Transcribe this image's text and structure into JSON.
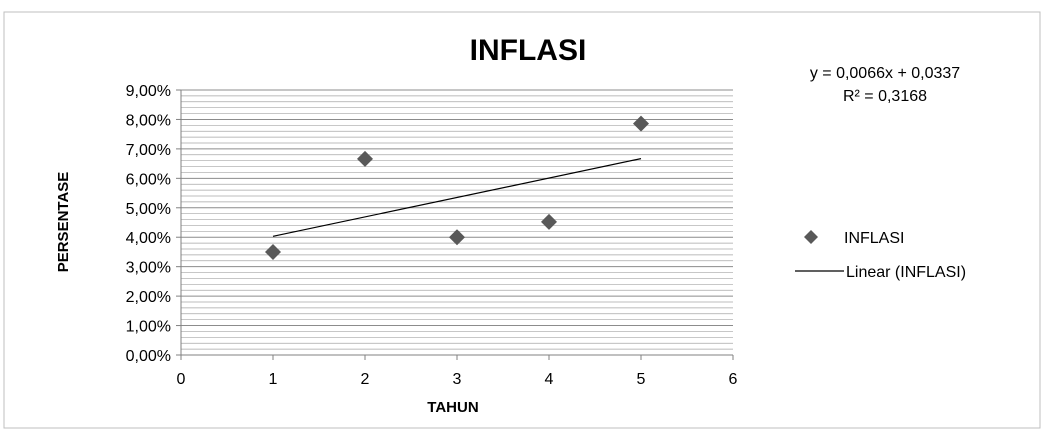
{
  "chart_data": {
    "type": "scatter",
    "title": "INFLASI",
    "xlabel": "TAHUN",
    "ylabel": "PERSENTASE",
    "xlim": [
      0,
      6
    ],
    "ylim": [
      0,
      0.09
    ],
    "x_ticks": [
      0,
      1,
      2,
      3,
      4,
      5,
      6
    ],
    "x_tick_labels": [
      "0",
      "1",
      "2",
      "3",
      "4",
      "5",
      "6"
    ],
    "y_ticks": [
      0,
      0.01,
      0.02,
      0.03,
      0.04,
      0.05,
      0.06,
      0.07,
      0.08,
      0.09
    ],
    "y_tick_labels": [
      "0,00%",
      "1,00%",
      "2,00%",
      "3,00%",
      "4,00%",
      "5,00%",
      "6,00%",
      "7,00%",
      "8,00%",
      "9,00%"
    ],
    "grid": true,
    "legend_position": "right",
    "series": [
      {
        "name": "INFLASI",
        "marker": "diamond",
        "color": "#595959",
        "points": [
          {
            "x": 1,
            "y": 0.035
          },
          {
            "x": 2,
            "y": 0.0666
          },
          {
            "x": 3,
            "y": 0.04
          },
          {
            "x": 4,
            "y": 0.0452
          },
          {
            "x": 5,
            "y": 0.0786
          }
        ]
      }
    ],
    "trendline": {
      "name": "Linear (INFLASI)",
      "type": "linear",
      "slope": 0.0066,
      "intercept": 0.0337,
      "x_range": [
        1,
        5
      ],
      "color": "#000000",
      "equation": "y = 0,0066x + 0,0337",
      "r_squared": "R² = 0,3168"
    }
  }
}
